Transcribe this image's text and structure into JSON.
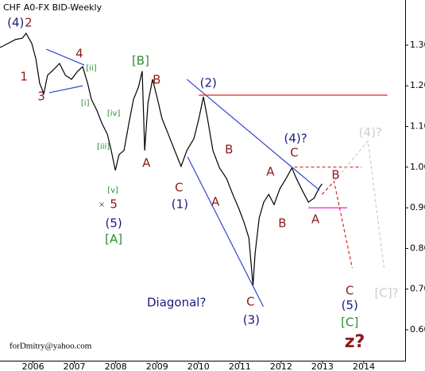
{
  "chart_data": {
    "type": "line",
    "title": "CHF A0-FX BID-Weekly",
    "footer": "forDmitry@yahoo.com",
    "color": "#000000",
    "x": [
      2005.2,
      2005.39,
      2005.58,
      2005.74,
      2005.83,
      2005.97,
      2006.07,
      2006.16,
      2006.26,
      2006.35,
      2006.49,
      2006.64,
      2006.78,
      2006.93,
      2007.08,
      2007.2,
      2007.32,
      2007.41,
      2007.55,
      2007.66,
      2007.8,
      2007.89,
      2007.99,
      2008.08,
      2008.2,
      2008.32,
      2008.43,
      2008.55,
      2008.64,
      2008.7,
      2008.78,
      2008.89,
      2009.01,
      2009.12,
      2009.24,
      2009.39,
      2009.58,
      2009.72,
      2009.89,
      2010.01,
      2010.12,
      2010.22,
      2010.35,
      2010.51,
      2010.68,
      2010.83,
      2010.97,
      2011.1,
      2011.22,
      2011.32,
      2011.37,
      2011.47,
      2011.58,
      2011.7,
      2011.83,
      2011.97,
      2012.12,
      2012.26,
      2012.37,
      2012.51,
      2012.66,
      2012.8,
      2012.91,
      2012.99
    ],
    "values": [
      1.294,
      1.304,
      1.314,
      1.317,
      1.329,
      1.304,
      1.265,
      1.206,
      1.181,
      1.226,
      1.239,
      1.255,
      1.226,
      1.216,
      1.236,
      1.247,
      1.206,
      1.167,
      1.138,
      1.109,
      1.08,
      1.041,
      0.992,
      1.031,
      1.041,
      1.109,
      1.167,
      1.197,
      1.236,
      1.041,
      1.158,
      1.216,
      1.167,
      1.119,
      1.089,
      1.05,
      1.002,
      1.041,
      1.07,
      1.119,
      1.173,
      1.119,
      1.041,
      0.998,
      0.972,
      0.933,
      0.9,
      0.865,
      0.826,
      0.709,
      0.787,
      0.875,
      0.914,
      0.933,
      0.908,
      0.947,
      0.972,
      0.998,
      0.972,
      0.943,
      0.914,
      0.924,
      0.947,
      0.959
    ],
    "xlim": [
      2005.2,
      2015.0
    ],
    "ylim": [
      0.524,
      1.411
    ],
    "xticks": [
      2006,
      2007,
      2008,
      2009,
      2010,
      2011,
      2012,
      2013,
      2014
    ],
    "yticks": [
      {
        "value": 1.3,
        "label": "1.30"
      },
      {
        "value": 1.2,
        "label": "1.20"
      },
      {
        "value": 1.1,
        "label": "1.10"
      },
      {
        "value": 1.0,
        "label": "1.00"
      },
      {
        "value": 0.9,
        "label": "0.90"
      },
      {
        "value": 0.8,
        "label": "0.80"
      },
      {
        "value": 0.7,
        "label": "0.70"
      },
      {
        "value": 0.6,
        "label": "0.60"
      }
    ],
    "lines": [
      {
        "color": "#3344cc",
        "dash": false,
        "x": [
          2006.32,
          2007.24
        ],
        "y": [
          1.29,
          1.251
        ]
      },
      {
        "color": "#3344cc",
        "dash": false,
        "x": [
          2006.39,
          2007.2
        ],
        "y": [
          1.183,
          1.2
        ]
      },
      {
        "color": "#3344cc",
        "dash": false,
        "x": [
          2009.72,
          2012.93
        ],
        "y": [
          1.216,
          0.943
        ]
      },
      {
        "color": "#3344cc",
        "dash": false,
        "x": [
          2009.74,
          2011.57
        ],
        "y": [
          1.025,
          0.657
        ]
      },
      {
        "color": "#e02020",
        "dash": false,
        "x": [
          2010.01,
          2014.57
        ],
        "y": [
          1.177,
          1.177
        ]
      },
      {
        "color": "#e02020",
        "dash": true,
        "x": [
          2012.32,
          2013.95
        ],
        "y": [
          1.0,
          1.0
        ]
      },
      {
        "color": "#e020e0",
        "dash": false,
        "x": [
          2012.66,
          2013.6
        ],
        "y": [
          0.9,
          0.9
        ]
      },
      {
        "color": "#e02020",
        "dash": true,
        "x": [
          2012.99,
          2013.28,
          2013.72
        ],
        "y": [
          0.933,
          0.965,
          0.752
        ]
      },
      {
        "color": "#cccccc",
        "dash": true,
        "x": [
          2013.28,
          2014.1,
          2014.49
        ],
        "y": [
          0.965,
          1.064,
          0.752
        ]
      }
    ],
    "annotations": [
      {
        "text": "(4)",
        "x": 2005.58,
        "y": 1.354,
        "color": "#1a1a80"
      },
      {
        "text": "2",
        "x": 2005.89,
        "y": 1.354,
        "color": "#8b1a1a"
      },
      {
        "text": "1",
        "x": 2005.78,
        "y": 1.222,
        "color": "#8b1a1a"
      },
      {
        "text": "3",
        "x": 2006.2,
        "y": 1.173,
        "color": "#8b1a1a"
      },
      {
        "text": "4",
        "x": 2007.12,
        "y": 1.278,
        "color": "#8b1a1a"
      },
      {
        "text": "[ii]",
        "x": 2007.41,
        "y": 1.243,
        "color": "#2e8b2e",
        "small": true
      },
      {
        "text": "[i]",
        "x": 2007.26,
        "y": 1.158,
        "color": "#2e8b2e",
        "small": true
      },
      {
        "text": "[iv]",
        "x": 2007.95,
        "y": 1.132,
        "color": "#2e8b2e",
        "small": true
      },
      {
        "text": "[iii]",
        "x": 2007.7,
        "y": 1.05,
        "color": "#2e8b2e",
        "small": true
      },
      {
        "text": "[v]",
        "x": 2007.93,
        "y": 0.943,
        "color": "#2e8b2e",
        "small": true
      },
      {
        "text": "×",
        "x": 2007.66,
        "y": 0.908,
        "color": "#555555",
        "small": true
      },
      {
        "text": "5",
        "x": 2007.95,
        "y": 0.908,
        "color": "#8b1a1a"
      },
      {
        "text": "(5)",
        "x": 2007.95,
        "y": 0.861,
        "color": "#1a1a80"
      },
      {
        "text": "[A]",
        "x": 2007.95,
        "y": 0.822,
        "color": "#2e8b2e"
      },
      {
        "text": "[B]",
        "x": 2008.6,
        "y": 1.261,
        "color": "#2e8b2e"
      },
      {
        "text": "B",
        "x": 2008.99,
        "y": 1.214,
        "color": "#8b1a1a"
      },
      {
        "text": "A",
        "x": 2008.74,
        "y": 1.009,
        "color": "#8b1a1a"
      },
      {
        "text": "C",
        "x": 2009.53,
        "y": 0.949,
        "color": "#8b1a1a"
      },
      {
        "text": "(1)",
        "x": 2009.55,
        "y": 0.908,
        "color": "#1a1a80"
      },
      {
        "text": "(2)",
        "x": 2010.24,
        "y": 1.206,
        "color": "#1a1a80"
      },
      {
        "text": "B",
        "x": 2010.74,
        "y": 1.043,
        "color": "#8b1a1a"
      },
      {
        "text": "A",
        "x": 2010.41,
        "y": 0.914,
        "color": "#8b1a1a"
      },
      {
        "text": "C",
        "x": 2011.26,
        "y": 0.668,
        "color": "#8b1a1a"
      },
      {
        "text": "(3)",
        "x": 2011.28,
        "y": 0.623,
        "color": "#1a1a80"
      },
      {
        "text": "Diagonal?",
        "x": 2009.47,
        "y": 0.666,
        "color": "#1a1a80"
      },
      {
        "text": "A",
        "x": 2011.74,
        "y": 0.988,
        "color": "#8b1a1a"
      },
      {
        "text": "C",
        "x": 2012.32,
        "y": 1.035,
        "color": "#8b1a1a"
      },
      {
        "text": "(4)?",
        "x": 2012.35,
        "y": 1.07,
        "color": "#1a1a80"
      },
      {
        "text": "B",
        "x": 2012.03,
        "y": 0.861,
        "color": "#8b1a1a"
      },
      {
        "text": "B",
        "x": 2013.32,
        "y": 0.98,
        "color": "#8b1a1a"
      },
      {
        "text": "A",
        "x": 2012.83,
        "y": 0.871,
        "color": "#8b1a1a"
      },
      {
        "text": "(4)?",
        "x": 2014.16,
        "y": 1.084,
        "color": "#cccccc"
      },
      {
        "text": "[C]?",
        "x": 2014.55,
        "y": 0.69,
        "color": "#cccccc"
      },
      {
        "text": "C",
        "x": 2013.66,
        "y": 0.696,
        "color": "#8b1a1a"
      },
      {
        "text": "(5)",
        "x": 2013.66,
        "y": 0.659,
        "color": "#1a1a80"
      },
      {
        "text": "[C]",
        "x": 2013.66,
        "y": 0.618,
        "color": "#2e8b2e"
      },
      {
        "text": "z?",
        "x": 2013.78,
        "y": 0.569,
        "color": "#8b1a1a",
        "bold": true
      }
    ]
  }
}
